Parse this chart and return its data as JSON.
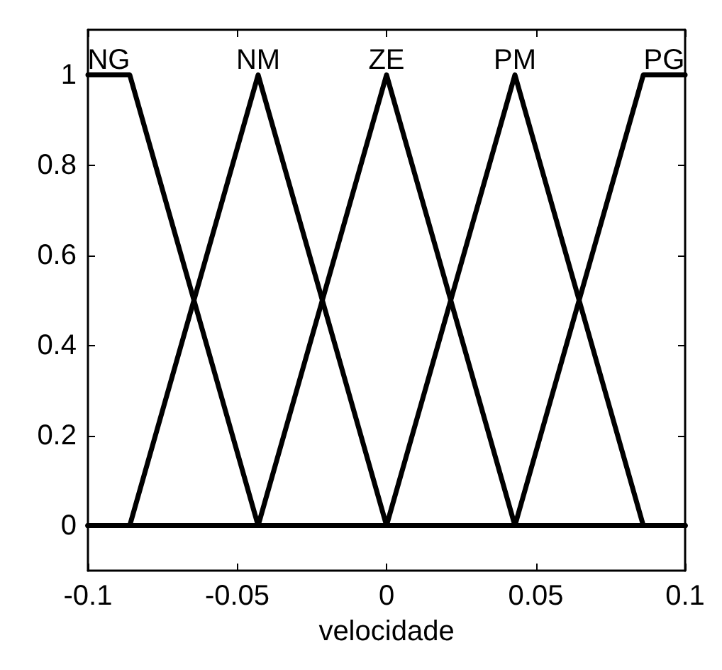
{
  "chart_data": {
    "type": "line",
    "xlabel": "velocidade",
    "series": [
      {
        "name": "NG",
        "color": "#000000",
        "x": [
          -0.1,
          -0.086,
          -0.043,
          0.1
        ],
        "values": [
          1,
          1,
          0,
          0
        ]
      },
      {
        "name": "NM",
        "color": "#000000",
        "x": [
          -0.1,
          -0.086,
          -0.043,
          0,
          0.1
        ],
        "values": [
          0,
          0,
          1,
          0,
          0
        ]
      },
      {
        "name": "ZE",
        "color": "#000000",
        "x": [
          -0.1,
          -0.043,
          0,
          0.043,
          0.1
        ],
        "values": [
          0,
          0,
          1,
          0,
          0
        ]
      },
      {
        "name": "PM",
        "color": "#000000",
        "x": [
          -0.1,
          0,
          0.043,
          0.086,
          0.1
        ],
        "values": [
          0,
          0,
          1,
          0,
          0
        ]
      },
      {
        "name": "PG",
        "color": "#000000",
        "x": [
          -0.1,
          0.043,
          0.086,
          0.1
        ],
        "values": [
          0,
          0,
          1,
          1
        ]
      }
    ],
    "xlim": [
      -0.1,
      0.1
    ],
    "xticks": [
      -0.1,
      -0.05,
      0,
      0.05,
      0.1
    ],
    "ylim": [
      -0.1,
      1.1
    ],
    "yticks": [
      0,
      0.2,
      0.4,
      0.6,
      0.8,
      1
    ],
    "grid": false,
    "legend": "top",
    "marker": "none",
    "line_style": "solid"
  }
}
